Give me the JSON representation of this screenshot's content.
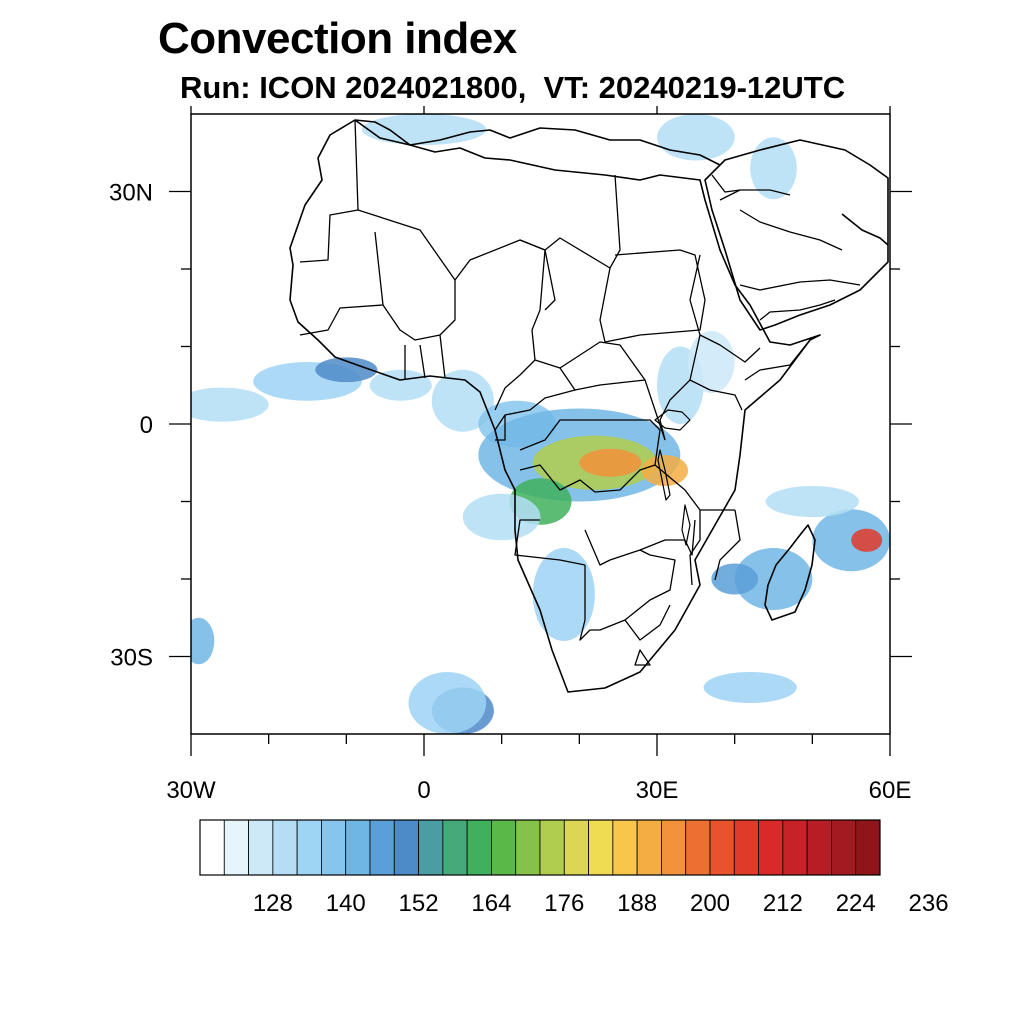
{
  "title": "Convection index",
  "subtitle": "Run: ICON 2024021800,  VT: 20240219-12UTC",
  "map": {
    "region": "Africa",
    "lon_range": [
      -30,
      60
    ],
    "lat_range": [
      -40,
      40
    ],
    "lon_ticks": [
      {
        "value": -30,
        "label": "30W"
      },
      {
        "value": 0,
        "label": "0"
      },
      {
        "value": 30,
        "label": "30E"
      },
      {
        "value": 60,
        "label": "60E"
      }
    ],
    "lat_ticks": [
      {
        "value": 30,
        "label": "30N"
      },
      {
        "value": 0,
        "label": "0"
      },
      {
        "value": -30,
        "label": "30S"
      }
    ],
    "minor_lon_ticks": [
      -20,
      -10,
      10,
      20,
      40,
      50
    ],
    "minor_lat_ticks": [
      20,
      10,
      -10,
      -20
    ],
    "field_blobs": [
      {
        "lon": -26,
        "lat": 2.5,
        "rlon": 6,
        "rlat": 2.2,
        "level": 3
      },
      {
        "lon": -15,
        "lat": 5.5,
        "rlon": 7,
        "rlat": 2.5,
        "level": 4
      },
      {
        "lon": -10,
        "lat": 7,
        "rlon": 4,
        "rlat": 1.6,
        "level": 8
      },
      {
        "lon": -3,
        "lat": 5,
        "rlon": 4,
        "rlat": 2,
        "level": 3
      },
      {
        "lon": 5,
        "lat": 3,
        "rlon": 4,
        "rlat": 4,
        "level": 3
      },
      {
        "lon": 12,
        "lat": 0,
        "rlon": 5,
        "rlat": 3,
        "level": 5
      },
      {
        "lon": 20,
        "lat": -4,
        "rlon": 13,
        "rlat": 6,
        "level": 6
      },
      {
        "lon": 22,
        "lat": -5,
        "rlon": 8,
        "rlat": 3.5,
        "level": 14
      },
      {
        "lon": 24,
        "lat": -5,
        "rlon": 4,
        "rlat": 1.8,
        "level": 19
      },
      {
        "lon": 31,
        "lat": -6,
        "rlon": 3,
        "rlat": 2,
        "level": 18
      },
      {
        "lon": 15,
        "lat": -10,
        "rlon": 4,
        "rlat": 3,
        "level": 11
      },
      {
        "lon": 18,
        "lat": -22,
        "rlon": 4,
        "rlat": 6,
        "level": 4
      },
      {
        "lon": 10,
        "lat": -12,
        "rlon": 5,
        "rlat": 3,
        "level": 3
      },
      {
        "lon": 45,
        "lat": -20,
        "rlon": 5,
        "rlat": 4,
        "level": 6
      },
      {
        "lon": 40,
        "lat": -20,
        "rlon": 3,
        "rlat": 2,
        "level": 7
      },
      {
        "lon": 55,
        "lat": -15,
        "rlon": 5,
        "rlat": 4,
        "level": 6
      },
      {
        "lon": 57,
        "lat": -15,
        "rlon": 2,
        "rlat": 1.5,
        "level": 22
      },
      {
        "lon": 50,
        "lat": -10,
        "rlon": 6,
        "rlat": 2,
        "level": 3
      },
      {
        "lon": 33,
        "lat": 5,
        "rlon": 3,
        "rlat": 5,
        "level": 3
      },
      {
        "lon": 37,
        "lat": 8,
        "rlon": 3,
        "rlat": 4,
        "level": 2
      },
      {
        "lon": 5,
        "lat": -37,
        "rlon": 4,
        "rlat": 3,
        "level": 8
      },
      {
        "lon": 3,
        "lat": -36,
        "rlon": 5,
        "rlat": 4,
        "level": 4
      },
      {
        "lon": 42,
        "lat": -34,
        "rlon": 6,
        "rlat": 2,
        "level": 4
      },
      {
        "lon": 0,
        "lat": 38,
        "rlon": 8,
        "rlat": 2,
        "level": 3
      },
      {
        "lon": 35,
        "lat": 37,
        "rlon": 5,
        "rlat": 3,
        "level": 3
      },
      {
        "lon": 45,
        "lat": 33,
        "rlon": 3,
        "rlat": 4,
        "level": 3
      },
      {
        "lon": -29,
        "lat": -28,
        "rlon": 2,
        "rlat": 3,
        "level": 6
      }
    ]
  },
  "colorbar": {
    "colors": [
      "#ffffff",
      "#e6f4fc",
      "#cde9f8",
      "#b3def5",
      "#9ed4f4",
      "#86c6ec",
      "#70b6e5",
      "#5a9fd8",
      "#4d8bc8",
      "#4a9da2",
      "#46a97a",
      "#3fb05c",
      "#5ab848",
      "#86c24a",
      "#b1cd4e",
      "#dbd653",
      "#f0dc52",
      "#f7c64a",
      "#f4ad43",
      "#f2923b",
      "#ec7032",
      "#e6532c",
      "#df3a2a",
      "#d92929",
      "#c72227",
      "#b71d24",
      "#a31a20",
      "#8e161b"
    ],
    "tick_labels": [
      "128",
      "140",
      "152",
      "164",
      "176",
      "188",
      "200",
      "212",
      "224",
      "236"
    ]
  }
}
